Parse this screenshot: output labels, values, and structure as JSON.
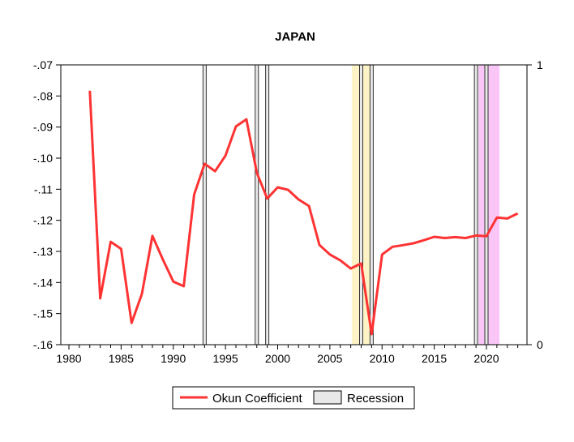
{
  "chart_data": {
    "type": "line",
    "title": "JAPAN",
    "xlim": [
      1979,
      2024.5
    ],
    "ylim": [
      -0.16,
      -0.07
    ],
    "y2lim": [
      0,
      1
    ],
    "x_ticks": [
      1980,
      1985,
      1990,
      1995,
      2000,
      2005,
      2010,
      2015,
      2020
    ],
    "y_ticks": [
      -0.07,
      -0.08,
      -0.09,
      -0.1,
      -0.11,
      -0.12,
      -0.13,
      -0.14,
      -0.15,
      -0.16
    ],
    "y_tick_labels": [
      "-.07",
      "-.08",
      "-.09",
      "-.10",
      "-.11",
      "-.12",
      "-.13",
      "-.14",
      "-.15",
      "-.16"
    ],
    "y2_tick_labels": [
      "1",
      "0"
    ],
    "grid": false,
    "legend_placement": "bottom",
    "series": [
      {
        "name": "Okun Coefficient",
        "color": "#ff3333",
        "x": [
          1982,
          1983,
          1984,
          1985,
          1986,
          1987,
          1988,
          1989,
          1990,
          1991,
          1992,
          1993,
          1994,
          1995,
          1996,
          1997,
          1998,
          1999,
          2000,
          2001,
          2002,
          2003,
          2004,
          2005,
          2006,
          2007,
          2008,
          2009,
          2010,
          2011,
          2012,
          2013,
          2014,
          2015,
          2016,
          2017,
          2018,
          2019,
          2020,
          2021,
          2022,
          2023
        ],
        "y": [
          -0.0783,
          -0.1451,
          -0.1269,
          -0.1292,
          -0.153,
          -0.1436,
          -0.125,
          -0.1326,
          -0.1397,
          -0.1412,
          -0.1117,
          -0.1018,
          -0.1042,
          -0.0992,
          -0.0898,
          -0.0875,
          -0.1047,
          -0.113,
          -0.1094,
          -0.1102,
          -0.1133,
          -0.1154,
          -0.1279,
          -0.131,
          -0.1329,
          -0.1355,
          -0.1339,
          -0.1566,
          -0.131,
          -0.1285,
          -0.128,
          -0.1274,
          -0.1264,
          -0.1253,
          -0.1257,
          -0.1254,
          -0.1257,
          -0.1249,
          -0.1251,
          -0.1191,
          -0.1194,
          -0.1178
        ]
      }
    ],
    "recession": {
      "name": "Recession",
      "color": "#e8e8e8",
      "years": [
        1993,
        1998,
        1999,
        2008,
        2009,
        2019,
        2020
      ]
    },
    "highlight_bands": [
      {
        "from": 2007.1,
        "to": 2009.0,
        "color": "#fdf3c6"
      },
      {
        "from": 2019.25,
        "to": 2021.25,
        "color": "#f9c6f7"
      }
    ]
  }
}
